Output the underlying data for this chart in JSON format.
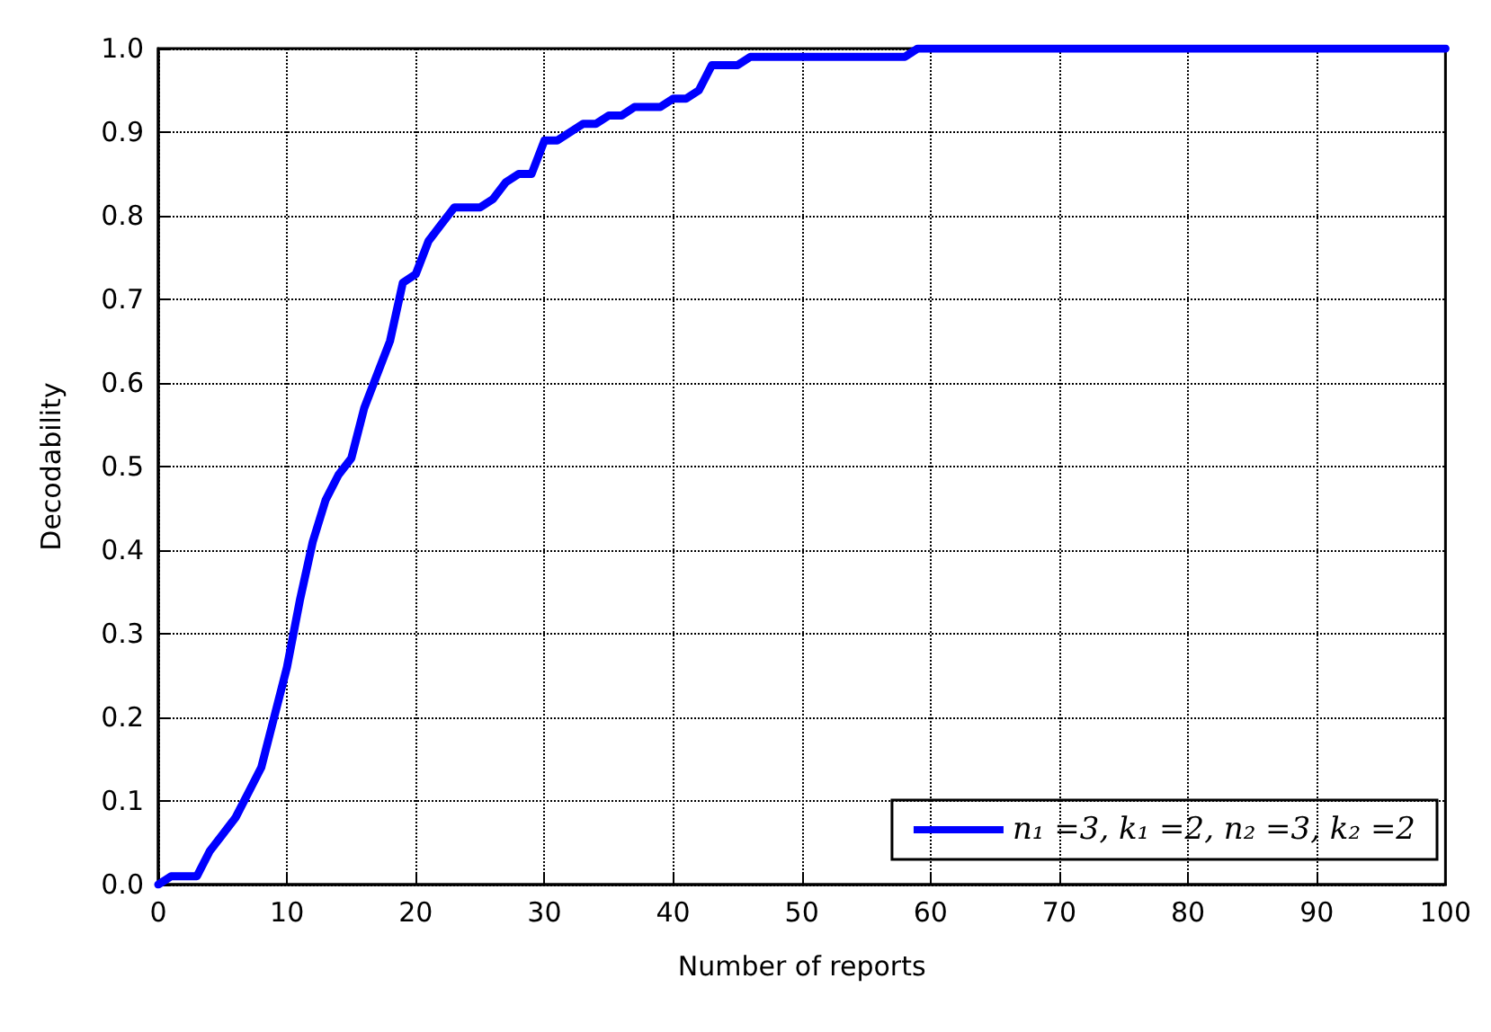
{
  "chart_data": {
    "type": "line",
    "xlabel": "Number of reports",
    "ylabel": "Decodability",
    "x": [
      0,
      1,
      3,
      4,
      5,
      6,
      7,
      8,
      9,
      10,
      11,
      12,
      13,
      14,
      15,
      16,
      17,
      18,
      19,
      20,
      21,
      22,
      23,
      25,
      26,
      27,
      28,
      29,
      30,
      31,
      32,
      33,
      34,
      35,
      36,
      37,
      39,
      40,
      41,
      42,
      43,
      45,
      46,
      58,
      59,
      100
    ],
    "series": [
      {
        "name": "n₁ =3, k₁ =2, n₂ =3, k₂ =2",
        "color": "#0000ff",
        "values": [
          0.0,
          0.01,
          0.01,
          0.04,
          0.06,
          0.08,
          0.11,
          0.14,
          0.2,
          0.26,
          0.34,
          0.41,
          0.46,
          0.49,
          0.51,
          0.57,
          0.61,
          0.65,
          0.72,
          0.73,
          0.77,
          0.79,
          0.81,
          0.81,
          0.82,
          0.84,
          0.85,
          0.85,
          0.89,
          0.89,
          0.9,
          0.91,
          0.91,
          0.92,
          0.92,
          0.93,
          0.93,
          0.94,
          0.94,
          0.95,
          0.98,
          0.98,
          0.99,
          0.99,
          1.0,
          1.0
        ]
      }
    ],
    "xlim": [
      0,
      100
    ],
    "xticks": [
      0,
      10,
      20,
      30,
      40,
      50,
      60,
      70,
      80,
      90,
      100
    ],
    "ylim": [
      0,
      1.0
    ],
    "yticks": [
      {
        "value": 0,
        "label": "0.0"
      },
      {
        "value": 0.1,
        "label": "0.1"
      },
      {
        "value": 0.2,
        "label": "0.2"
      },
      {
        "value": 0.3,
        "label": "0.3"
      },
      {
        "value": 0.4,
        "label": "0.4"
      },
      {
        "value": 0.5,
        "label": "0.5"
      },
      {
        "value": 0.6,
        "label": "0.6"
      },
      {
        "value": 0.7,
        "label": "0.7"
      },
      {
        "value": 0.8,
        "label": "0.8"
      },
      {
        "value": 0.9,
        "label": "0.9"
      },
      {
        "value": 1.0,
        "label": "1.0"
      }
    ],
    "grid": true,
    "legend": "bottom right",
    "marker": "none",
    "line_style": "solid"
  }
}
